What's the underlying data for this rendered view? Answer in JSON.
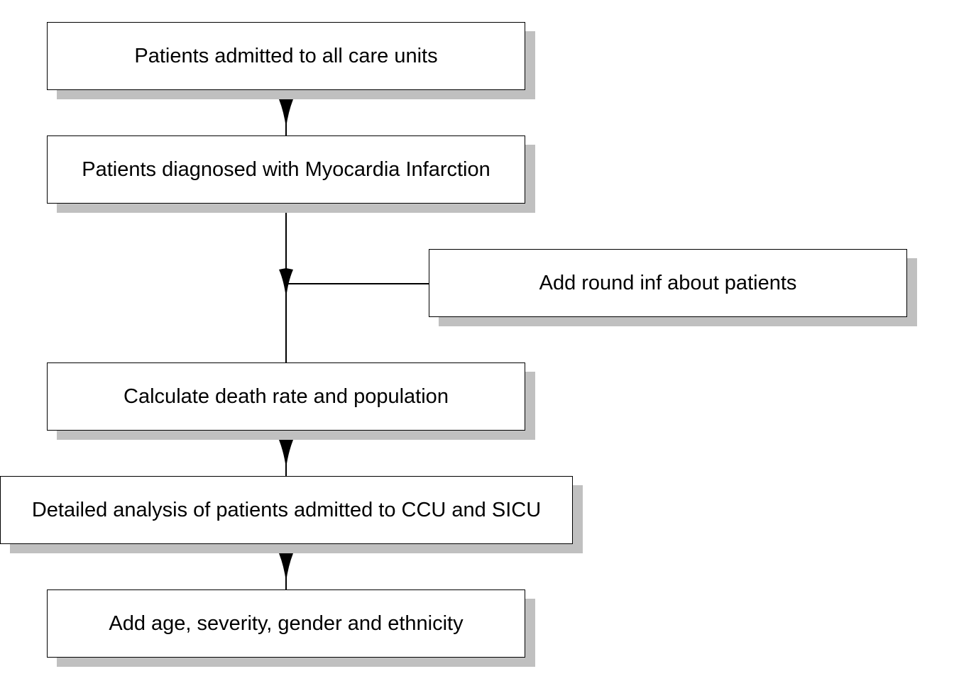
{
  "diagram": {
    "nodes": [
      {
        "id": "n1",
        "label": "Patients admitted to all care units"
      },
      {
        "id": "n2",
        "label": "Patients diagnosed with Myocardia Infarction"
      },
      {
        "id": "n3",
        "label": "Add round inf about patients"
      },
      {
        "id": "n4",
        "label": "Calculate death rate and population"
      },
      {
        "id": "n5",
        "label": "Detailed analysis of patients admitted to CCU and SICU"
      },
      {
        "id": "n6",
        "label": "Add age, severity, gender and ethnicity"
      }
    ],
    "edges": [
      {
        "from": "n2",
        "to": "n1"
      },
      {
        "from": "n4",
        "to": "n2"
      },
      {
        "from": "n3",
        "to": "n2"
      },
      {
        "from": "n5",
        "to": "n4"
      },
      {
        "from": "n6",
        "to": "n5"
      }
    ],
    "colors": {
      "box_border": "#000000",
      "box_fill": "#ffffff",
      "shadow": "#c0c0c0",
      "line": "#000000"
    }
  }
}
